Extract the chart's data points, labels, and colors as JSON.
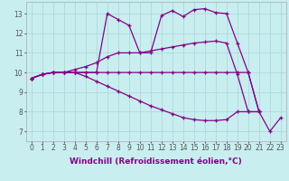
{
  "background_color": "#c8eef0",
  "grid_color": "#b0d8dc",
  "line_color": "#880088",
  "markersize": 3.5,
  "linewidth": 0.9,
  "xlabel": "Windchill (Refroidissement éolien,°C)",
  "xlabel_fontsize": 6.5,
  "tick_fontsize": 5.5,
  "xlim": [
    -0.5,
    23.5
  ],
  "ylim": [
    6.5,
    13.6
  ],
  "yticks": [
    7,
    8,
    9,
    10,
    11,
    12,
    13
  ],
  "xticks": [
    0,
    1,
    2,
    3,
    4,
    5,
    6,
    7,
    8,
    9,
    10,
    11,
    12,
    13,
    14,
    15,
    16,
    17,
    18,
    19,
    20,
    21,
    22,
    23
  ],
  "series": [
    {
      "x": [
        0,
        1,
        2,
        3,
        4,
        5,
        6,
        7,
        8,
        9,
        10,
        11,
        12,
        13,
        14,
        15,
        16,
        17,
        18,
        19,
        20,
        21,
        22,
        23
      ],
      "y": [
        9.7,
        9.9,
        10.0,
        10.0,
        10.0,
        10.0,
        10.0,
        13.0,
        12.7,
        12.4,
        11.0,
        11.0,
        12.9,
        13.15,
        12.85,
        13.2,
        13.25,
        13.05,
        13.0,
        11.5,
        10.0,
        8.0,
        7.0,
        7.7
      ]
    },
    {
      "x": [
        0,
        1,
        2,
        3,
        4,
        5,
        6,
        7,
        8,
        9,
        10,
        11,
        12,
        13,
        14,
        15,
        16,
        17,
        18,
        19,
        20,
        21
      ],
      "y": [
        9.7,
        9.9,
        10.0,
        10.0,
        10.15,
        10.3,
        10.5,
        10.8,
        11.0,
        11.0,
        11.0,
        11.1,
        11.2,
        11.3,
        11.4,
        11.5,
        11.55,
        11.6,
        11.5,
        9.9,
        8.0,
        8.0
      ]
    },
    {
      "x": [
        0,
        1,
        2,
        3,
        4,
        5,
        6,
        7,
        8,
        9,
        10,
        11,
        12,
        13,
        14,
        15,
        16,
        17,
        18,
        19,
        20,
        21
      ],
      "y": [
        9.7,
        9.9,
        10.0,
        10.0,
        10.0,
        9.8,
        9.55,
        9.3,
        9.05,
        8.8,
        8.55,
        8.3,
        8.1,
        7.9,
        7.7,
        7.6,
        7.55,
        7.55,
        7.6,
        8.0,
        8.0,
        8.0
      ]
    },
    {
      "x": [
        0,
        1,
        2,
        3,
        4,
        5,
        6,
        7,
        8,
        9,
        10,
        11,
        12,
        13,
        14,
        15,
        16,
        17,
        18,
        19,
        20,
        21
      ],
      "y": [
        9.7,
        9.9,
        10.0,
        10.0,
        10.0,
        10.0,
        10.0,
        10.0,
        10.0,
        10.0,
        10.0,
        10.0,
        10.0,
        10.0,
        10.0,
        10.0,
        10.0,
        10.0,
        10.0,
        10.0,
        10.0,
        8.0
      ]
    }
  ]
}
